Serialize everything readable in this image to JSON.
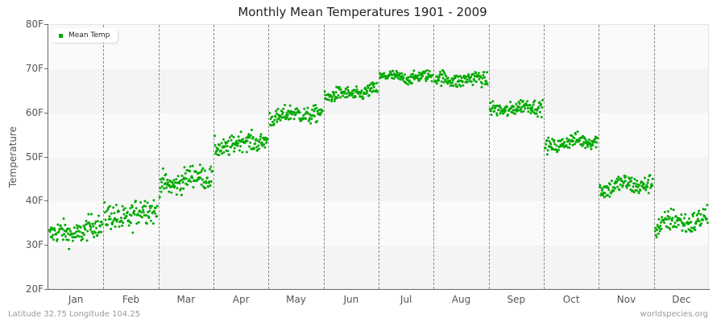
{
  "title": "Monthly Mean Temperatures 1901 - 2009",
  "legend": {
    "label": "Mean Temp",
    "color": "#00aa00"
  },
  "footer": {
    "location": "Latitude 32.75 Longitude 104.25",
    "source": "worldspecies.org"
  },
  "colors": {
    "point": "#00aa00",
    "band_light": "#fafafa",
    "band_dark": "#f4f4f4",
    "grid": "#888888",
    "axis": "#666666"
  },
  "chart_data": {
    "type": "scatter",
    "title": "Monthly Mean Temperatures 1901 - 2009",
    "xlabel": "",
    "ylabel": "Temperature",
    "ylim": [
      20,
      80
    ],
    "yticks": [
      "20F",
      "30F",
      "40F",
      "50F",
      "60F",
      "70F",
      "80F"
    ],
    "categories": [
      "Jan",
      "Feb",
      "Mar",
      "Apr",
      "May",
      "Jun",
      "Jul",
      "Aug",
      "Sep",
      "Oct",
      "Nov",
      "Dec"
    ],
    "legend": [
      "Mean Temp"
    ],
    "legend_position": "top-left",
    "grid": "vertical dashed month separators; alternating horizontal bands",
    "years": [
      1901,
      2009
    ],
    "points_per_month": 109,
    "series": [
      {
        "name": "Mean Temp",
        "months": [
          {
            "month": "Jan",
            "start_mean": 32.0,
            "end_mean": 34.0,
            "spread": 2.2,
            "min": 28.0,
            "max": 37.0
          },
          {
            "month": "Feb",
            "start_mean": 35.5,
            "end_mean": 38.0,
            "spread": 2.6,
            "min": 30.5,
            "max": 43.0
          },
          {
            "month": "Mar",
            "start_mean": 43.5,
            "end_mean": 46.0,
            "spread": 2.2,
            "min": 39.0,
            "max": 49.0
          },
          {
            "month": "Apr",
            "start_mean": 52.0,
            "end_mean": 54.0,
            "spread": 1.8,
            "min": 49.0,
            "max": 57.0
          },
          {
            "month": "May",
            "start_mean": 59.0,
            "end_mean": 60.0,
            "spread": 1.6,
            "min": 55.0,
            "max": 63.0
          },
          {
            "month": "Jun",
            "start_mean": 63.5,
            "end_mean": 65.0,
            "spread": 1.3,
            "min": 61.0,
            "max": 68.0
          },
          {
            "month": "Jul",
            "start_mean": 68.0,
            "end_mean": 68.0,
            "spread": 1.1,
            "min": 65.5,
            "max": 71.0
          },
          {
            "month": "Aug",
            "start_mean": 67.5,
            "end_mean": 67.5,
            "spread": 1.4,
            "min": 63.5,
            "max": 71.5
          },
          {
            "month": "Sep",
            "start_mean": 60.5,
            "end_mean": 61.5,
            "spread": 1.4,
            "min": 57.5,
            "max": 65.0
          },
          {
            "month": "Oct",
            "start_mean": 52.5,
            "end_mean": 54.0,
            "spread": 1.4,
            "min": 50.0,
            "max": 56.5
          },
          {
            "month": "Nov",
            "start_mean": 43.0,
            "end_mean": 44.0,
            "spread": 1.8,
            "min": 38.0,
            "max": 48.0
          },
          {
            "month": "Dec",
            "start_mean": 34.5,
            "end_mean": 36.0,
            "spread": 2.2,
            "min": 28.5,
            "max": 39.0
          }
        ]
      }
    ]
  }
}
